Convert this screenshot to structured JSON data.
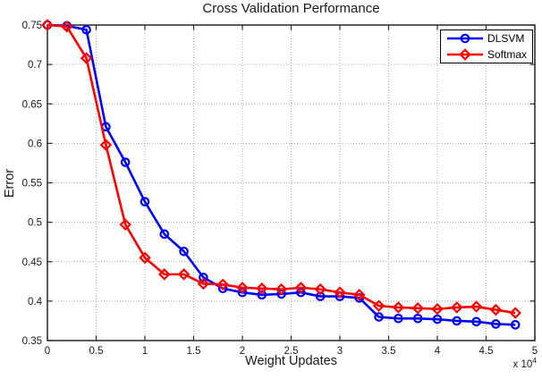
{
  "chart_data": {
    "type": "line",
    "title": "Cross Validation Performance",
    "xlabel": "Weight Updates",
    "ylabel": "Error",
    "x_axis_multiplier": {
      "base": "x 10",
      "exponent": "4"
    },
    "xlim": [
      0,
      5
    ],
    "ylim": [
      0.35,
      0.75
    ],
    "xticks": [
      0,
      0.5,
      1,
      1.5,
      2,
      2.5,
      3,
      3.5,
      4,
      4.5,
      5
    ],
    "xtick_labels": [
      "0",
      "0.5",
      "1",
      "1.5",
      "2",
      "2.5",
      "3",
      "3.5",
      "4",
      "4.5",
      "5"
    ],
    "yticks": [
      0.35,
      0.4,
      0.45,
      0.5,
      0.55,
      0.6,
      0.65,
      0.7,
      0.75
    ],
    "ytick_labels": [
      "0.35",
      "0.4",
      "0.45",
      "0.5",
      "0.55",
      "0.6",
      "0.65",
      "0.7",
      "0.75"
    ],
    "grid": true,
    "legend_position": "top-right",
    "grid_color": "#aaaaaa",
    "axis_color": "#262626",
    "x": [
      0.0,
      0.2,
      0.4,
      0.6,
      0.8,
      1.0,
      1.2,
      1.4,
      1.6,
      1.8,
      2.0,
      2.2,
      2.4,
      2.6,
      2.8,
      3.0,
      3.2,
      3.4,
      3.6,
      3.8,
      4.0,
      4.2,
      4.4,
      4.6,
      4.8
    ],
    "series": [
      {
        "name": "DLSVM",
        "color": "#0000ff",
        "marker": "circle",
        "values": [
          0.75,
          0.749,
          0.744,
          0.621,
          0.576,
          0.526,
          0.485,
          0.463,
          0.43,
          0.416,
          0.411,
          0.408,
          0.409,
          0.411,
          0.406,
          0.406,
          0.404,
          0.38,
          0.378,
          0.378,
          0.377,
          0.375,
          0.374,
          0.371,
          0.37
        ]
      },
      {
        "name": "Softmax",
        "color": "#ff0000",
        "marker": "diamond",
        "values": [
          0.75,
          0.748,
          0.708,
          0.598,
          0.497,
          0.455,
          0.434,
          0.434,
          0.422,
          0.421,
          0.417,
          0.416,
          0.415,
          0.417,
          0.415,
          0.411,
          0.408,
          0.394,
          0.392,
          0.391,
          0.39,
          0.392,
          0.393,
          0.389,
          0.385
        ]
      }
    ]
  }
}
